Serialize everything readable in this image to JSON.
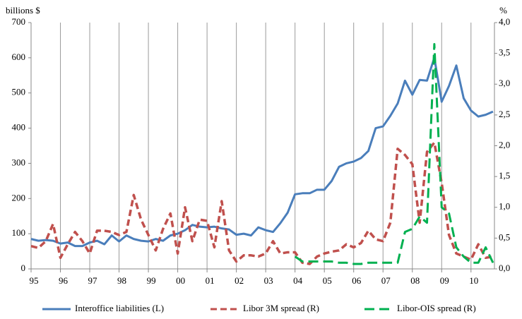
{
  "chart_data": {
    "type": "line",
    "y_label": "billions $",
    "y2_label": "%",
    "x": [
      1995,
      1995.25,
      1995.5,
      1995.75,
      1996,
      1996.25,
      1996.5,
      1996.75,
      1997,
      1997.25,
      1997.5,
      1997.75,
      1998,
      1998.25,
      1998.5,
      1998.75,
      1999,
      1999.25,
      1999.5,
      1999.75,
      2000,
      2000.25,
      2000.5,
      2000.75,
      2001,
      2001.25,
      2001.5,
      2001.75,
      2002,
      2002.25,
      2002.5,
      2002.75,
      2003,
      2003.25,
      2003.5,
      2003.75,
      2004,
      2004.25,
      2004.5,
      2004.75,
      2005,
      2005.25,
      2005.5,
      2005.75,
      2006,
      2006.25,
      2006.5,
      2006.75,
      2007,
      2007.25,
      2007.5,
      2007.75,
      2008,
      2008.25,
      2008.5,
      2008.75,
      2009,
      2009.25,
      2009.5,
      2009.75,
      2010,
      2010.25,
      2010.5,
      2010.75
    ],
    "series": [
      {
        "name": "Interoffice liabilities (L)",
        "color": "#4a7ebb",
        "dash": "solid",
        "axis": "y",
        "values": [
          85,
          80,
          82,
          80,
          72,
          75,
          65,
          65,
          75,
          80,
          70,
          95,
          78,
          95,
          85,
          80,
          78,
          85,
          80,
          95,
          100,
          110,
          125,
          120,
          118,
          120,
          115,
          112,
          97,
          100,
          95,
          118,
          110,
          105,
          130,
          160,
          212,
          215,
          215,
          225,
          225,
          250,
          290,
          300,
          305,
          315,
          335,
          400,
          405,
          435,
          470,
          535,
          495,
          537,
          535,
          600,
          475,
          520,
          578,
          485,
          450,
          433,
          438,
          447
        ]
      },
      {
        "name": "Libor 3M spread (R)",
        "color": "#c0504d",
        "dash": "dashed",
        "axis": "y2",
        "values": [
          0.37,
          0.34,
          0.45,
          0.73,
          0.18,
          0.4,
          0.6,
          0.45,
          0.25,
          0.62,
          0.62,
          0.6,
          0.55,
          0.6,
          1.2,
          0.8,
          0.55,
          0.3,
          0.65,
          0.9,
          0.25,
          1.0,
          0.45,
          0.8,
          0.78,
          0.35,
          1.1,
          0.3,
          0.12,
          0.22,
          0.22,
          0.2,
          0.25,
          0.45,
          0.25,
          0.27,
          0.27,
          0.1,
          0.08,
          0.2,
          0.25,
          0.28,
          0.3,
          0.4,
          0.35,
          0.42,
          0.62,
          0.48,
          0.45,
          0.75,
          1.95,
          1.85,
          1.7,
          0.75,
          1.9,
          2.05,
          1.4,
          0.55,
          0.25,
          0.2,
          0.15,
          0.4,
          0.18,
          0.2
        ]
      },
      {
        "name": "Libor-OIS spread (R)",
        "color": "#00b050",
        "dash": "longdash",
        "axis": "y2",
        "values": [
          null,
          null,
          null,
          null,
          null,
          null,
          null,
          null,
          null,
          null,
          null,
          null,
          null,
          null,
          null,
          null,
          null,
          null,
          null,
          null,
          null,
          null,
          null,
          null,
          null,
          null,
          null,
          null,
          null,
          null,
          null,
          null,
          null,
          null,
          null,
          null,
          0.2,
          0.12,
          0.12,
          0.12,
          0.12,
          0.12,
          0.1,
          0.1,
          0.08,
          0.08,
          0.1,
          0.1,
          0.1,
          0.1,
          0.1,
          0.6,
          0.65,
          0.85,
          0.75,
          3.65,
          1.0,
          0.9,
          0.35,
          0.2,
          0.1,
          0.1,
          0.35,
          0.1
        ]
      }
    ],
    "xlim": [
      1995,
      2010.8
    ],
    "xticks": [
      {
        "value": 1995,
        "label": "95"
      },
      {
        "value": 1996,
        "label": "96"
      },
      {
        "value": 1997,
        "label": "97"
      },
      {
        "value": 1998,
        "label": "98"
      },
      {
        "value": 1999,
        "label": "99"
      },
      {
        "value": 2000,
        "label": "00"
      },
      {
        "value": 2001,
        "label": "01"
      },
      {
        "value": 2002,
        "label": "02"
      },
      {
        "value": 2003,
        "label": "03"
      },
      {
        "value": 2004,
        "label": "04"
      },
      {
        "value": 2005,
        "label": "05"
      },
      {
        "value": 2006,
        "label": "06"
      },
      {
        "value": 2007,
        "label": "07"
      },
      {
        "value": 2008,
        "label": "08"
      },
      {
        "value": 2009,
        "label": "09"
      },
      {
        "value": 2010,
        "label": "10"
      }
    ],
    "ylim": [
      0,
      700
    ],
    "yticks": [
      0,
      100,
      200,
      300,
      400,
      500,
      600,
      700
    ],
    "y2lim": [
      0,
      4
    ],
    "y2ticks": [
      {
        "value": 0,
        "label": "0,0"
      },
      {
        "value": 0.5,
        "label": "0,5"
      },
      {
        "value": 1,
        "label": "1,0"
      },
      {
        "value": 1.5,
        "label": "1,5"
      },
      {
        "value": 2,
        "label": "2,0"
      },
      {
        "value": 2.5,
        "label": "2,5"
      },
      {
        "value": 3,
        "label": "3,0"
      },
      {
        "value": 3.5,
        "label": "3,5"
      },
      {
        "value": 4,
        "label": "4,0"
      }
    ],
    "grid": "x",
    "legend": "bottom"
  }
}
